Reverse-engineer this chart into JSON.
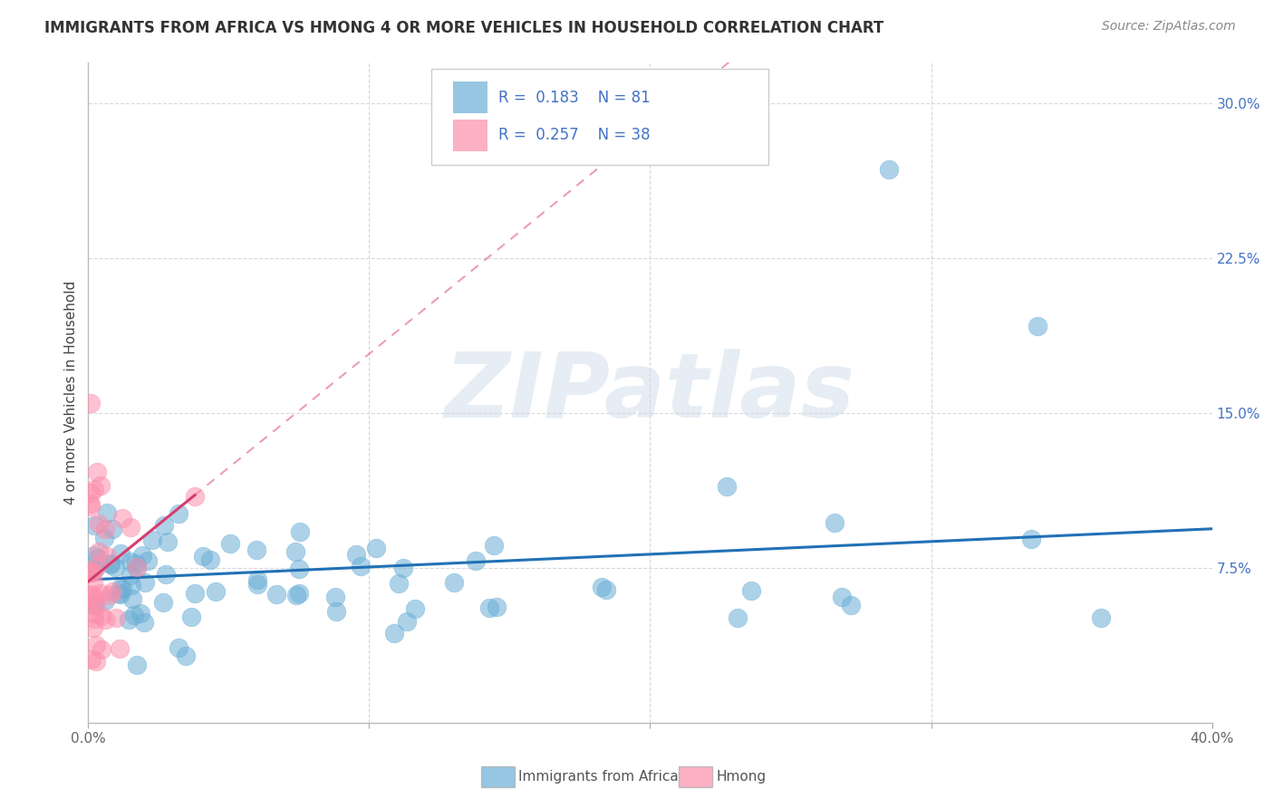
{
  "title": "IMMIGRANTS FROM AFRICA VS HMONG 4 OR MORE VEHICLES IN HOUSEHOLD CORRELATION CHART",
  "source": "Source: ZipAtlas.com",
  "ylabel": "4 or more Vehicles in Household",
  "xlim": [
    0.0,
    0.4
  ],
  "ylim": [
    0.0,
    0.32
  ],
  "xtick_positions": [
    0.0,
    0.1,
    0.2,
    0.3,
    0.4
  ],
  "xticklabels": [
    "0.0%",
    "",
    "",
    "",
    "40.0%"
  ],
  "ytick_positions": [
    0.0,
    0.075,
    0.15,
    0.225,
    0.3
  ],
  "yticklabels": [
    "",
    "7.5%",
    "15.0%",
    "22.5%",
    "30.0%"
  ],
  "africa_r": 0.183,
  "africa_n": 81,
  "hmong_r": 0.257,
  "hmong_n": 38,
  "africa_color": "#6baed6",
  "hmong_color": "#fc8fac",
  "africa_line_color": "#2171b5",
  "hmong_line_color": "#d63d6f",
  "watermark_text": "ZIPatlas",
  "legend_africa_label": "Immigrants from Africa",
  "legend_hmong_label": "Hmong",
  "background_color": "#ffffff",
  "grid_color": "#d9d9d9",
  "ytick_color": "#4472c4",
  "title_color": "#333333",
  "source_color": "#888888"
}
